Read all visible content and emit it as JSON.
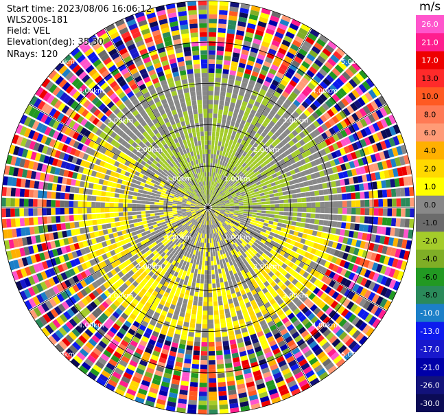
{
  "header": {
    "start_time": "Start time: 2023/08/06 16:06:12",
    "site": "WLS200s-181",
    "field": "Field: VEL",
    "elevation": "Elevation(deg): 35.30",
    "nrays": "NRays: 120"
  },
  "colorbar": {
    "unit": "m/s",
    "ticks": [
      "26.0",
      "21.0",
      "17.0",
      "13.0",
      "10.0",
      "8.0",
      "6.0",
      "4.0",
      "2.0",
      "1.0",
      "0.0",
      "-1.0",
      "-2.0",
      "-4.0",
      "-6.0",
      "-8.0",
      "-10.0",
      "-13.0",
      "-17.0",
      "-21.0",
      "-26.0",
      "-30.0"
    ],
    "colors": [
      "#ff55cc",
      "#ff1e8e",
      "#ee0000",
      "#ff2a2a",
      "#ff5a22",
      "#ff7a55",
      "#ff9b77",
      "#ffb000",
      "#ffd800",
      "#ffff00",
      "#888888",
      "#6b6b6b",
      "#a4cc2a",
      "#7fae26",
      "#229922",
      "#2a8a5a",
      "#1c7fc8",
      "#0d1aee",
      "#1818cc",
      "#0000a8",
      "#12127a",
      "#0b0b55"
    ]
  },
  "chart_data": {
    "type": "ppi",
    "field": "VEL",
    "nrays": 120,
    "elevation_deg": 35.3,
    "range_rings_km": [
      1.0,
      2.0,
      3.0,
      4.0,
      5.0
    ],
    "ring_labels": [
      "1.00km",
      "2.00km",
      "3.00km",
      "4.00km",
      "5.00km"
    ],
    "unit": "m/s",
    "color_levels": [
      26.0,
      21.0,
      17.0,
      13.0,
      10.0,
      8.0,
      6.0,
      4.0,
      2.0,
      1.0,
      0.0,
      -1.0,
      -2.0,
      -4.0,
      -6.0,
      -8.0,
      -10.0,
      -13.0,
      -17.0,
      -21.0,
      -26.0,
      -30.0
    ]
  }
}
